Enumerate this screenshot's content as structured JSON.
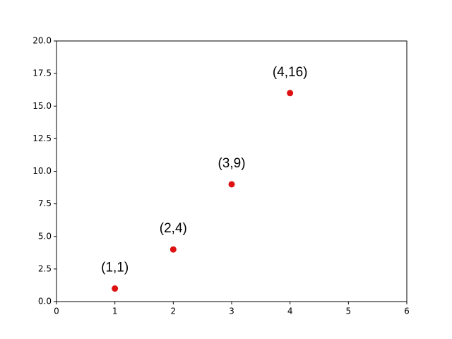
{
  "chart_data": {
    "type": "scatter",
    "x": [
      1,
      2,
      3,
      4
    ],
    "values": [
      1,
      4,
      9,
      16
    ],
    "value_labels": [
      "(1,1)",
      "(2,4)",
      "(3,9)",
      "(4,16)"
    ],
    "color": "#dd1111",
    "xlim": [
      0,
      6
    ],
    "xticks": [
      0,
      1,
      2,
      3,
      4,
      5,
      6
    ],
    "ylim": [
      0,
      20
    ],
    "yticks": [
      {
        "value": 0,
        "label": "0.0"
      },
      2.5,
      {
        "value": 5,
        "label": "5.0"
      },
      7.5,
      {
        "value": 10,
        "label": "10.0"
      },
      12.5,
      {
        "value": 15,
        "label": "15.0"
      },
      17.5,
      {
        "value": 20,
        "label": "20.0"
      }
    ],
    "grid": false
  }
}
